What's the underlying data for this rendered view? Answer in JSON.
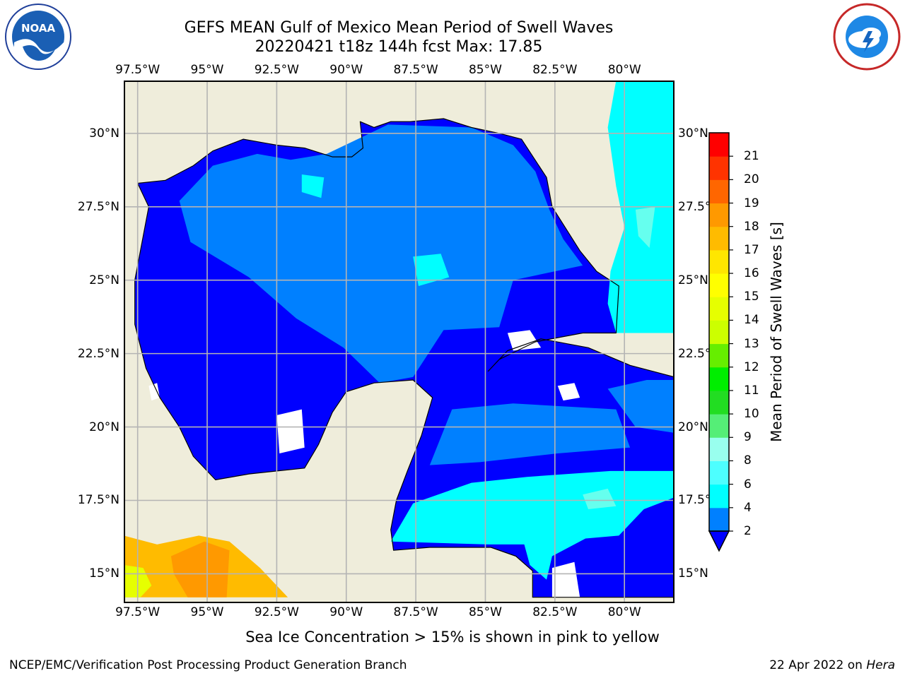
{
  "title": {
    "line1": "GEFS MEAN Gulf of Mexico Mean Period of Swell Waves",
    "line2": "20220421 t18z 144h fcst   Max: 17.85"
  },
  "map": {
    "lon_range": [
      -98,
      -78.2
    ],
    "lat_range": [
      14.0,
      31.8
    ],
    "lon_ticks": [
      {
        "value": -97.5,
        "label": "97.5°W"
      },
      {
        "value": -95,
        "label": "95°W"
      },
      {
        "value": -92.5,
        "label": "92.5°W"
      },
      {
        "value": -90,
        "label": "90°W"
      },
      {
        "value": -87.5,
        "label": "87.5°W"
      },
      {
        "value": -85,
        "label": "85°W"
      },
      {
        "value": -82.5,
        "label": "82.5°W"
      },
      {
        "value": -80,
        "label": "80°W"
      }
    ],
    "lat_ticks": [
      {
        "value": 30,
        "label": "30°N"
      },
      {
        "value": 27.5,
        "label": "27.5°N"
      },
      {
        "value": 25,
        "label": "25°N"
      },
      {
        "value": 22.5,
        "label": "22.5°N"
      },
      {
        "value": 20,
        "label": "20°N"
      },
      {
        "value": 17.5,
        "label": "17.5°N"
      },
      {
        "value": 15,
        "label": "15°N"
      }
    ],
    "right_lat_labels": [
      "30°N",
      "27.5°",
      "25°N",
      "22.5°",
      "20°N",
      "17.5°",
      "15°N"
    ],
    "colors": {
      "land": "#efeddb",
      "gridline": "#b4b4b4",
      "no_data": "#ffffff",
      "period_2_4": "#0000ff",
      "period_4_6": "#0080ff",
      "period_6_8": "#00ffff",
      "period_8_9": "#66ffee",
      "pacific_16_17": "#ffbb00",
      "pacific_17_18": "#ff9900",
      "pacific_14_15": "#e6ff00"
    },
    "gulf_polygon": [
      [
        -97.5,
        28.3
      ],
      [
        -97.1,
        27.5
      ],
      [
        -97.4,
        26
      ],
      [
        -97.6,
        25
      ],
      [
        -97.6,
        23.5
      ],
      [
        -97.2,
        22
      ],
      [
        -96.7,
        21
      ],
      [
        -96,
        20
      ],
      [
        -95.5,
        19
      ],
      [
        -94.7,
        18.2
      ],
      [
        -93.5,
        18.4
      ],
      [
        -92.5,
        18.5
      ],
      [
        -91.5,
        18.6
      ],
      [
        -91,
        19.4
      ],
      [
        -90.5,
        20.5
      ],
      [
        -90,
        21.2
      ],
      [
        -89,
        21.5
      ],
      [
        -87.6,
        21.6
      ],
      [
        -86.9,
        21
      ],
      [
        -87.3,
        19.7
      ],
      [
        -87.8,
        18.5
      ],
      [
        -88.2,
        17.5
      ],
      [
        -88.4,
        16.5
      ],
      [
        -88.3,
        15.8
      ],
      [
        -87,
        15.9
      ],
      [
        -86,
        15.9
      ],
      [
        -84.8,
        15.9
      ],
      [
        -83.9,
        15.6
      ],
      [
        -83.3,
        15.1
      ],
      [
        -83.3,
        14.2
      ],
      [
        -78.2,
        14.2
      ],
      [
        -78.2,
        21.7
      ],
      [
        -79.8,
        22.1
      ],
      [
        -81.3,
        22.7
      ],
      [
        -83,
        23
      ],
      [
        -84.2,
        22.6
      ],
      [
        -84.9,
        21.9
      ],
      [
        -84.5,
        22.3
      ],
      [
        -83.2,
        22.9
      ],
      [
        -81.5,
        23.2
      ],
      [
        -80.3,
        23.2
      ],
      [
        -80.2,
        24.8
      ],
      [
        -81,
        25.3
      ],
      [
        -81.6,
        26
      ],
      [
        -82,
        26.6
      ],
      [
        -82.6,
        27.5
      ],
      [
        -82.8,
        28.5
      ],
      [
        -83.7,
        29.8
      ],
      [
        -84.5,
        30
      ],
      [
        -85.5,
        30.2
      ],
      [
        -86.5,
        30.5
      ],
      [
        -87.7,
        30.4
      ],
      [
        -88.4,
        30.4
      ],
      [
        -89,
        30.2
      ],
      [
        -89.5,
        30.4
      ],
      [
        -89.4,
        29.5
      ],
      [
        -89.8,
        29.2
      ],
      [
        -90.5,
        29.2
      ],
      [
        -91.5,
        29.5
      ],
      [
        -92.5,
        29.6
      ],
      [
        -93.7,
        29.8
      ],
      [
        -94.8,
        29.4
      ],
      [
        -95.5,
        28.9
      ],
      [
        -96.5,
        28.4
      ]
    ],
    "light_zones": [
      [
        [
          -90.7,
          29.3
        ],
        [
          -88.5,
          30.3
        ],
        [
          -85.5,
          30.2
        ],
        [
          -84,
          29.6
        ],
        [
          -83.2,
          28.7
        ],
        [
          -82.7,
          27.4
        ],
        [
          -82.2,
          26.4
        ],
        [
          -81.5,
          25.5
        ],
        [
          -84,
          25
        ],
        [
          -84.5,
          23.4
        ],
        [
          -86.5,
          23.3
        ],
        [
          -87.6,
          21.7
        ],
        [
          -88.8,
          21.5
        ],
        [
          -90.1,
          22.7
        ],
        [
          -91.8,
          23.7
        ],
        [
          -93.5,
          25.1
        ],
        [
          -95.6,
          26.3
        ],
        [
          -96,
          27.7
        ],
        [
          -94.8,
          28.9
        ],
        [
          -93.2,
          29.3
        ],
        [
          -92,
          29.1
        ]
      ],
      [
        [
          -86.2,
          20.6
        ],
        [
          -84,
          20.8
        ],
        [
          -80.3,
          20.6
        ],
        [
          -79.8,
          19.3
        ],
        [
          -82.4,
          19.1
        ],
        [
          -85.2,
          18.8
        ],
        [
          -87,
          18.7
        ]
      ],
      [
        [
          -80.6,
          21.3
        ],
        [
          -79.2,
          21.6
        ],
        [
          -78.2,
          21.6
        ],
        [
          -78.2,
          19.8
        ],
        [
          -79.6,
          20
        ]
      ]
    ],
    "cyan_zones": [
      [
        [
          -80.3,
          23.2
        ],
        [
          -78.2,
          23.2
        ],
        [
          -78.2,
          31.8
        ],
        [
          -80.3,
          31.8
        ],
        [
          -80.6,
          30.2
        ],
        [
          -80.3,
          28.2
        ],
        [
          -80.0,
          26.8
        ],
        [
          -80.5,
          25.3
        ],
        [
          -80.6,
          24.2
        ]
      ],
      [
        [
          -88.4,
          16.1
        ],
        [
          -84.9,
          16.0
        ],
        [
          -83.6,
          16.0
        ],
        [
          -83.4,
          15.3
        ],
        [
          -82.8,
          14.8
        ],
        [
          -82.6,
          15.6
        ],
        [
          -81.4,
          16.2
        ],
        [
          -80.2,
          16.3
        ],
        [
          -79.3,
          17.2
        ],
        [
          -78.2,
          17.6
        ],
        [
          -78.2,
          18.5
        ],
        [
          -80.5,
          18.5
        ],
        [
          -83.5,
          18.3
        ],
        [
          -85.5,
          18.1
        ],
        [
          -87.6,
          17.4
        ]
      ],
      [
        [
          -87.6,
          25.8
        ],
        [
          -86.6,
          25.9
        ],
        [
          -86.3,
          25.1
        ],
        [
          -87.4,
          24.8
        ]
      ],
      [
        [
          -91.6,
          28.6
        ],
        [
          -90.8,
          28.5
        ],
        [
          -90.9,
          27.8
        ],
        [
          -91.6,
          28.0
        ]
      ]
    ],
    "pale_cyan_zones": [
      [
        [
          -79.6,
          27.4
        ],
        [
          -78.9,
          27.5
        ],
        [
          -79.1,
          26.1
        ],
        [
          -79.5,
          26.5
        ]
      ],
      [
        [
          -81.5,
          17.7
        ],
        [
          -80.6,
          17.9
        ],
        [
          -80.3,
          17.3
        ],
        [
          -81.3,
          17.2
        ]
      ]
    ],
    "white_patches": [
      [
        [
          -84.2,
          23.2
        ],
        [
          -83.4,
          23.3
        ],
        [
          -83.0,
          22.7
        ],
        [
          -84.0,
          22.6
        ]
      ],
      [
        [
          -82.4,
          21.4
        ],
        [
          -81.8,
          21.5
        ],
        [
          -81.6,
          21.0
        ],
        [
          -82.2,
          20.9
        ]
      ],
      [
        [
          -92.5,
          20.4
        ],
        [
          -91.6,
          20.6
        ],
        [
          -91.5,
          19.3
        ],
        [
          -92.4,
          19.1
        ]
      ],
      [
        [
          -97.1,
          21.4
        ],
        [
          -96.8,
          21.5
        ],
        [
          -96.7,
          21.0
        ],
        [
          -97.0,
          20.9
        ]
      ],
      [
        [
          -82.6,
          15.2
        ],
        [
          -81.8,
          15.4
        ],
        [
          -81.6,
          14.2
        ],
        [
          -82.6,
          14.2
        ]
      ]
    ],
    "pacific_polygon": [
      [
        -98,
        16.3
      ],
      [
        -96.8,
        16.0
      ],
      [
        -95.3,
        16.3
      ],
      [
        -94.2,
        16.1
      ],
      [
        -93.1,
        15.2
      ],
      [
        -92.1,
        14.2
      ],
      [
        -98,
        14.2
      ]
    ],
    "pacific_orange": [
      [
        -96.3,
        15.6
      ],
      [
        -95.1,
        16.1
      ],
      [
        -94.2,
        15.8
      ],
      [
        -94.3,
        14.2
      ],
      [
        -95.7,
        14.2
      ],
      [
        -96.2,
        15.0
      ]
    ],
    "pacific_yellow": [
      [
        -98,
        15.3
      ],
      [
        -97.3,
        15.2
      ],
      [
        -97,
        14.6
      ],
      [
        -97.4,
        14.2
      ],
      [
        -98,
        14.2
      ]
    ]
  },
  "colorbar": {
    "label": "Mean Period of Swell Waves [s]",
    "boundaries": [
      2,
      4,
      6,
      8,
      9,
      10,
      11,
      12,
      13,
      14,
      15,
      16,
      17,
      18,
      19,
      20,
      21
    ],
    "colors": [
      "#0080ff",
      "#00ffff",
      "#4dffff",
      "#99ffee",
      "#55ee77",
      "#22dd22",
      "#00ee00",
      "#66ee00",
      "#ccff00",
      "#e6ff00",
      "#ffff00",
      "#ffe600",
      "#ffbb00",
      "#ff9900",
      "#ff6600",
      "#ff3300",
      "#ff0000"
    ],
    "under_color": "#0000ff",
    "tick_labels": [
      "2",
      "4",
      "6",
      "8",
      "9",
      "10",
      "11",
      "12",
      "13",
      "14",
      "15",
      "16",
      "17",
      "18",
      "19",
      "20",
      "21"
    ]
  },
  "footnote": "Sea Ice Concentration > 15% is shown in pink to yellow",
  "credit": "NCEP/EMC/Verification Post Processing Product Generation Branch",
  "datestamp": {
    "date": "22 Apr 2022 on ",
    "host": "Hera"
  },
  "logos": {
    "left": {
      "icon": "noaa-logo-icon",
      "text": "NOAA"
    },
    "right": {
      "icon": "nws-logo-icon"
    }
  }
}
